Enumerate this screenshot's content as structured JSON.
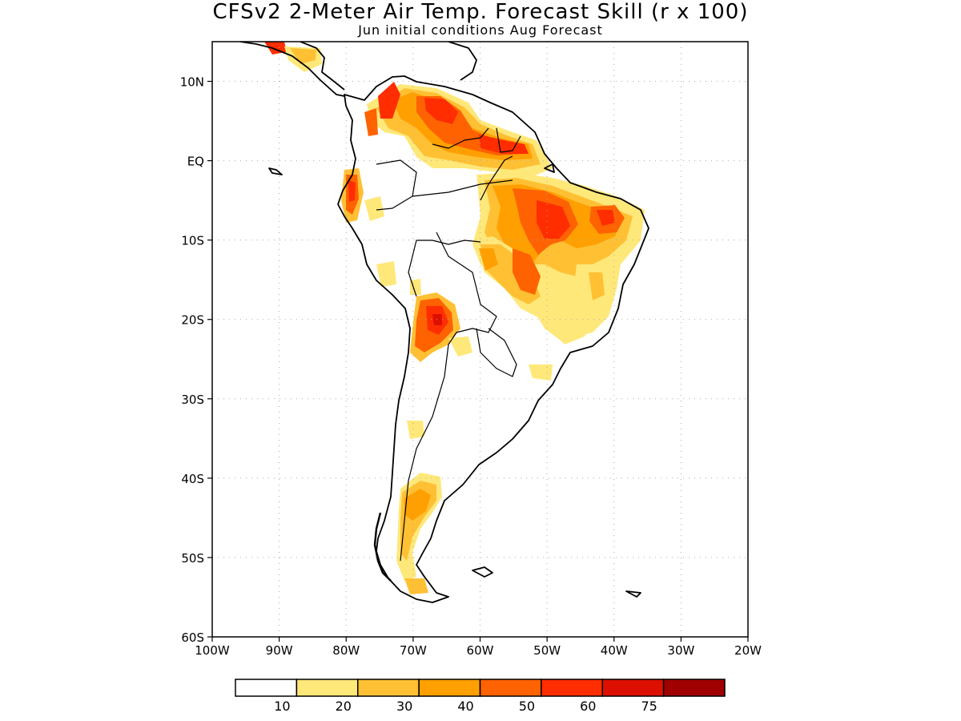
{
  "title": "CFSv2 2-Meter Air Temp. Forecast Skill (r x 100)",
  "subtitle": "Jun initial conditions  Aug Forecast",
  "map": {
    "lon_range": [
      -100,
      -20
    ],
    "lat_range": [
      -60,
      15
    ],
    "lon_ticks": [
      {
        "value": -100,
        "label": "100W"
      },
      {
        "value": -90,
        "label": "90W"
      },
      {
        "value": -80,
        "label": "80W"
      },
      {
        "value": -70,
        "label": "70W"
      },
      {
        "value": -60,
        "label": "60W"
      },
      {
        "value": -50,
        "label": "50W"
      },
      {
        "value": -40,
        "label": "40W"
      },
      {
        "value": -30,
        "label": "30W"
      },
      {
        "value": -20,
        "label": "20W"
      }
    ],
    "lat_ticks": [
      {
        "value": 10,
        "label": "10N"
      },
      {
        "value": 0,
        "label": "EQ"
      },
      {
        "value": -10,
        "label": "10S"
      },
      {
        "value": -20,
        "label": "20S"
      },
      {
        "value": -30,
        "label": "30S"
      },
      {
        "value": -40,
        "label": "40S"
      },
      {
        "value": -50,
        "label": "50S"
      },
      {
        "value": -60,
        "label": "60S"
      }
    ],
    "grid": true,
    "grid_style": "dotted",
    "skill_regions": [
      {
        "region": "Venezuela / Colombia coast",
        "level": 60,
        "lon": -66,
        "lat": 9
      },
      {
        "region": "Guianas / Amapa",
        "level": 60,
        "lon": -54,
        "lat": 4
      },
      {
        "region": "Colombia Andes",
        "level": 60,
        "lon": -74,
        "lat": 7
      },
      {
        "region": "Ecuador coast",
        "level": 60,
        "lon": -79,
        "lat": -3
      },
      {
        "region": "Para / Amazon east",
        "level": 60,
        "lon": -51,
        "lat": -7
      },
      {
        "region": "Maranhao / Piaui",
        "level": 60,
        "lon": -43,
        "lat": -6
      },
      {
        "region": "Mato Grosso",
        "level": 50,
        "lon": -52,
        "lat": -14
      },
      {
        "region": "Rondonia",
        "level": 40,
        "lon": -60,
        "lat": -12
      },
      {
        "region": "Bolivia / Paraguay border",
        "level": 60,
        "lon": -66,
        "lat": -20
      },
      {
        "region": "Goias / Minas Gerais",
        "level": 20,
        "lon": -46,
        "lat": -17
      },
      {
        "region": "Patagonia north",
        "level": 40,
        "lon": -70,
        "lat": -42
      },
      {
        "region": "Patagonia south",
        "level": 20,
        "lon": -70,
        "lat": -50
      }
    ]
  },
  "colorbar": {
    "colors": [
      "#ffffff",
      "#ffe87a",
      "#ffc034",
      "#ffa000",
      "#ff6200",
      "#ff2d00",
      "#dd1000",
      "#a00000"
    ],
    "labels": [
      "10",
      "20",
      "30",
      "40",
      "50",
      "60",
      "75"
    ]
  }
}
